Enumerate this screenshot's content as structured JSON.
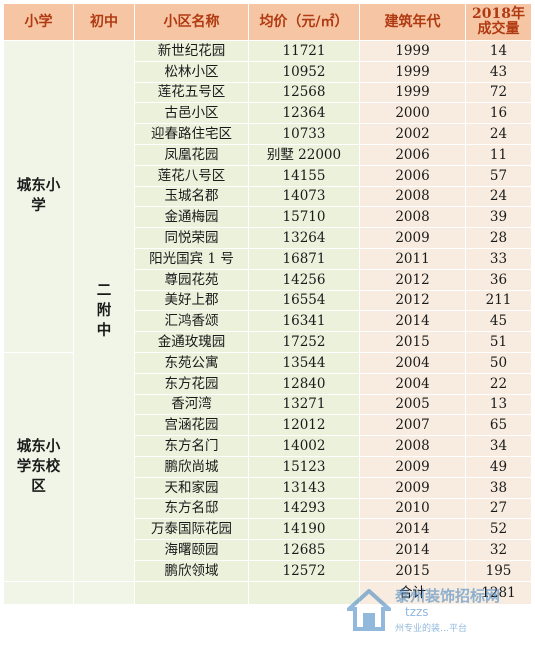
{
  "headers": [
    "小学",
    "初中",
    "小区名称",
    "均价（元/㎡）",
    "建筑年代",
    "2018年成交量"
  ],
  "school_east": "城东小学",
  "school_east_branch": "城东小学东校区",
  "middle_school": "二附中",
  "rows": [
    {
      "name": "新世纪花园",
      "price": "11721",
      "year": "1999",
      "volume": "14"
    },
    {
      "name": "松林小区",
      "price": "10952",
      "year": "1999",
      "volume": "43"
    },
    {
      "name": "莲花五号区",
      "price": "12568",
      "year": "1999",
      "volume": "72"
    },
    {
      "name": "古邑小区",
      "price": "12364",
      "year": "2000",
      "volume": "16"
    },
    {
      "name": "迎春路住宅区",
      "price": "10733",
      "year": "2002",
      "volume": "24"
    },
    {
      "name": "凤凰花园",
      "price": "别墅 22000",
      "year": "2006",
      "volume": "11"
    },
    {
      "name": "莲花八号区",
      "price": "14155",
      "year": "2006",
      "volume": "57"
    },
    {
      "name": "玉城名郡",
      "price": "14073",
      "year": "2008",
      "volume": "24"
    },
    {
      "name": "金通梅园",
      "price": "15710",
      "year": "2008",
      "volume": "39"
    },
    {
      "name": "同悦荣园",
      "price": "13264",
      "year": "2009",
      "volume": "28"
    },
    {
      "name": "阳光国宾 1 号",
      "price": "16871",
      "year": "2011",
      "volume": "33"
    },
    {
      "name": "尊园花苑",
      "price": "14256",
      "year": "2012",
      "volume": "36"
    },
    {
      "name": "美好上郡",
      "price": "16554",
      "year": "2012",
      "volume": "211"
    },
    {
      "name": "汇鸿香颂",
      "price": "16341",
      "year": "2014",
      "volume": "45"
    },
    {
      "name": "金通玫瑰园",
      "price": "17252",
      "year": "2015",
      "volume": "51"
    },
    {
      "name": "东苑公寓",
      "price": "13544",
      "year": "2004",
      "volume": "50"
    },
    {
      "name": "东方花园",
      "price": "12840",
      "year": "2004",
      "volume": "22"
    },
    {
      "name": "香河湾",
      "price": "13271",
      "year": "2005",
      "volume": "13"
    },
    {
      "name": "宫涵花园",
      "price": "12012",
      "year": "2007",
      "volume": "65"
    },
    {
      "name": "东方名门",
      "price": "14002",
      "year": "2008",
      "volume": "34"
    },
    {
      "name": "鹏欣尚城",
      "price": "15123",
      "year": "2009",
      "volume": "49"
    },
    {
      "name": "天和家园",
      "price": "13143",
      "year": "2009",
      "volume": "38"
    },
    {
      "name": "东方名邸",
      "price": "14293",
      "year": "2010",
      "volume": "27"
    },
    {
      "name": "万泰国际花园",
      "price": "14190",
      "year": "2014",
      "volume": "52"
    },
    {
      "name": "海曙颐园",
      "price": "12685",
      "year": "2014",
      "volume": "32"
    },
    {
      "name": "鹏欣领域",
      "price": "12572",
      "year": "2015",
      "volume": "195"
    }
  ],
  "total_label": "合计",
  "total_value": "1281",
  "watermark": {
    "line1": "泰州装饰招标网",
    "line2": "tzzs",
    "line3": "州专业的装",
    "line3_end": "平台"
  }
}
